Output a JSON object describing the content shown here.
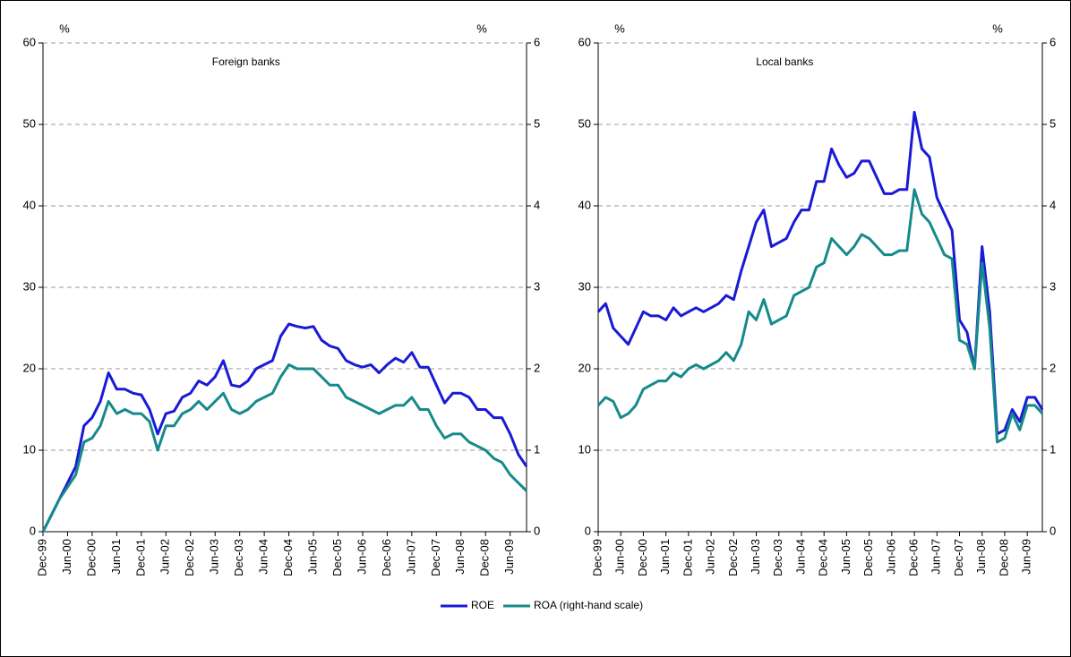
{
  "chart_data": [
    {
      "type": "line",
      "title": "Foreign banks",
      "ylabel": "%",
      "y2label": "%",
      "categories": [
        "Dec-99",
        null,
        null,
        "Jun-00",
        null,
        null,
        "Dec-00",
        null,
        null,
        "Jun-01",
        null,
        null,
        "Dec-01",
        null,
        null,
        "Jun-02",
        null,
        null,
        "Dec-02",
        null,
        null,
        "Jun-03",
        null,
        null,
        "Dec-03",
        null,
        null,
        "Jun-04",
        null,
        null,
        "Dec-04",
        null,
        null,
        "Jun-05",
        null,
        null,
        "Dec-05",
        null,
        null,
        "Jun-06",
        null,
        null,
        "Dec-06",
        null,
        null,
        "Jun-07",
        null,
        null,
        "Dec-07",
        null,
        null,
        "Jun-08",
        null,
        null,
        "Dec-08",
        null,
        null,
        "Jun-09",
        null,
        null
      ],
      "series": [
        {
          "name": "ROE",
          "color": "#1a1ad6",
          "values": [
            0,
            2,
            4,
            6,
            8,
            13,
            14,
            16,
            19.5,
            17.5,
            17.5,
            17,
            16.8,
            15,
            12,
            14.5,
            14.8,
            16.5,
            17,
            18.5,
            18,
            19,
            21,
            18,
            17.8,
            18.5,
            20,
            20.5,
            21,
            24,
            25.5,
            25.2,
            25,
            25.2,
            23.5,
            22.8,
            22.5,
            21,
            20.5,
            20.2,
            20.5,
            19.5,
            20.5,
            21.3,
            20.8,
            22,
            20.2,
            20.2,
            18,
            15.8,
            17,
            17,
            16.5,
            15,
            15,
            14,
            14,
            12,
            9.5,
            8
          ]
        },
        {
          "name": "ROA (right-hand scale)",
          "color": "#168a8a",
          "axis": "y2",
          "values": [
            0,
            0.2,
            0.4,
            0.55,
            0.7,
            1.1,
            1.15,
            1.3,
            1.6,
            1.45,
            1.5,
            1.45,
            1.45,
            1.35,
            1.0,
            1.3,
            1.3,
            1.45,
            1.5,
            1.6,
            1.5,
            1.6,
            1.7,
            1.5,
            1.45,
            1.5,
            1.6,
            1.65,
            1.7,
            1.9,
            2.05,
            2.0,
            2.0,
            2.0,
            1.9,
            1.8,
            1.8,
            1.65,
            1.6,
            1.55,
            1.5,
            1.45,
            1.5,
            1.55,
            1.55,
            1.65,
            1.5,
            1.5,
            1.3,
            1.15,
            1.2,
            1.2,
            1.1,
            1.05,
            1.0,
            0.9,
            0.85,
            0.7,
            0.6,
            0.5
          ]
        }
      ],
      "ylim": [
        0,
        60
      ],
      "yticks": [
        0,
        10,
        20,
        30,
        40,
        50,
        60
      ],
      "y2lim": [
        0,
        6
      ],
      "y2ticks": [
        0,
        1,
        2,
        3,
        4,
        5,
        6
      ],
      "grid": true
    },
    {
      "type": "line",
      "title": "Local banks",
      "ylabel": "%",
      "y2label": "%",
      "categories": [
        "Dec-99",
        null,
        null,
        "Jun-00",
        null,
        null,
        "Dec-00",
        null,
        null,
        "Jun-01",
        null,
        null,
        "Dec-01",
        null,
        null,
        "Jun-02",
        null,
        null,
        "Dec-02",
        null,
        null,
        "Jun-03",
        null,
        null,
        "Dec-03",
        null,
        null,
        "Jun-04",
        null,
        null,
        "Dec-04",
        null,
        null,
        "Jun-05",
        null,
        null,
        "Dec-05",
        null,
        null,
        "Jun-06",
        null,
        null,
        "Dec-06",
        null,
        null,
        "Jun-07",
        null,
        null,
        "Dec-07",
        null,
        null,
        "Jun-08",
        null,
        null,
        "Dec-08",
        null,
        null,
        "Jun-09",
        null,
        null
      ],
      "series": [
        {
          "color": "#1a1ad6",
          "values": [
            27,
            28,
            25,
            24,
            23,
            25,
            27,
            26.5,
            26.5,
            26,
            27.5,
            26.5,
            27,
            27.5,
            27,
            27.5,
            28,
            29,
            28.5,
            32,
            35,
            38,
            39.5,
            35,
            35.5,
            36,
            38,
            39.5,
            39.5,
            43,
            43,
            47,
            45,
            43.5,
            44,
            45.5,
            45.5,
            43.5,
            41.5,
            41.5,
            42,
            42,
            51.5,
            47,
            46,
            41,
            39,
            37,
            26,
            24.5,
            20,
            35,
            27,
            12,
            12.5,
            15,
            13.5,
            16.5,
            16.5,
            15
          ]
        },
        {
          "color": "#168a8a",
          "axis": "y2",
          "values": [
            1.55,
            1.65,
            1.6,
            1.4,
            1.45,
            1.55,
            1.75,
            1.8,
            1.85,
            1.85,
            1.95,
            1.9,
            2.0,
            2.05,
            2.0,
            2.05,
            2.1,
            2.2,
            2.1,
            2.3,
            2.7,
            2.6,
            2.85,
            2.55,
            2.6,
            2.65,
            2.9,
            2.95,
            3.0,
            3.25,
            3.3,
            3.6,
            3.5,
            3.4,
            3.5,
            3.65,
            3.6,
            3.5,
            3.4,
            3.4,
            3.45,
            3.45,
            4.2,
            3.9,
            3.8,
            3.6,
            3.4,
            3.35,
            2.35,
            2.3,
            2.0,
            3.3,
            2.5,
            1.1,
            1.15,
            1.45,
            1.25,
            1.55,
            1.55,
            1.45
          ]
        }
      ],
      "ylim": [
        0,
        60
      ],
      "yticks": [
        0,
        10,
        20,
        30,
        40,
        50,
        60
      ],
      "y2lim": [
        0,
        6
      ],
      "y2ticks": [
        0,
        1,
        2,
        3,
        4,
        5,
        6
      ],
      "grid": true
    }
  ]
}
